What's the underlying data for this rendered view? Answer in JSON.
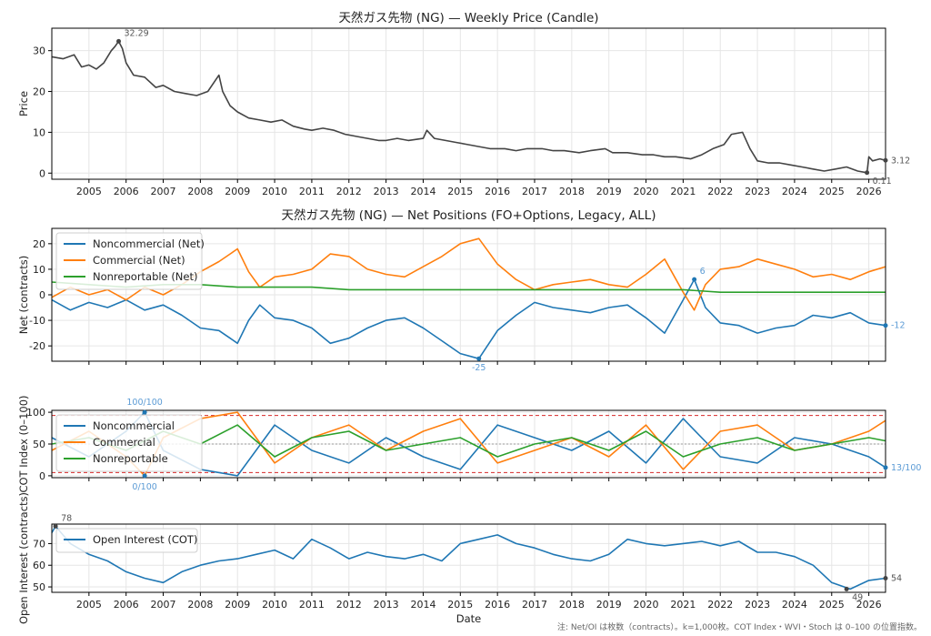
{
  "chart_data": [
    {
      "type": "line",
      "title": "天然ガス先物 (NG) — Weekly Price (Candle)",
      "ylabel": "Price",
      "xlabel": "",
      "xlim": [
        2004.0,
        2026.45
      ],
      "ylim": [
        -1.5,
        35.5
      ],
      "yticks": [
        0,
        10,
        20,
        30
      ],
      "xticks": [
        2005,
        2006,
        2007,
        2008,
        2009,
        2010,
        2011,
        2012,
        2013,
        2014,
        2015,
        2016,
        2017,
        2018,
        2019,
        2020,
        2021,
        2022,
        2023,
        2024,
        2025,
        2026
      ],
      "grid": true,
      "colors": [
        "#444444"
      ],
      "series": [
        {
          "x": [
            2004.0,
            2004.3,
            2004.6,
            2004.8,
            2005.0,
            2005.2,
            2005.4,
            2005.6,
            2005.7,
            2005.8,
            2005.9,
            2006.0,
            2006.2,
            2006.5,
            2006.8,
            2007.0,
            2007.3,
            2007.6,
            2007.9,
            2008.2,
            2008.5,
            2008.6,
            2008.8,
            2009.0,
            2009.3,
            2009.6,
            2009.9,
            2010.2,
            2010.5,
            2010.8,
            2011.0,
            2011.3,
            2011.6,
            2011.9,
            2012.2,
            2012.5,
            2012.8,
            2013.0,
            2013.3,
            2013.6,
            2014.0,
            2014.1,
            2014.3,
            2014.6,
            2014.9,
            2015.2,
            2015.5,
            2015.8,
            2016.2,
            2016.5,
            2016.8,
            2017.2,
            2017.5,
            2017.8,
            2018.2,
            2018.5,
            2018.9,
            2019.1,
            2019.5,
            2019.9,
            2020.2,
            2020.5,
            2020.8,
            2021.2,
            2021.5,
            2021.8,
            2022.1,
            2022.3,
            2022.6,
            2022.8,
            2023.0,
            2023.3,
            2023.6,
            2023.9,
            2024.2,
            2024.5,
            2024.8,
            2025.1,
            2025.4,
            2025.7,
            2025.95,
            2026.0,
            2026.1,
            2026.3,
            2026.45
          ],
          "y": [
            28.5,
            28.0,
            29.0,
            26.0,
            26.5,
            25.5,
            27.0,
            30.0,
            31.0,
            32.29,
            30.5,
            27.0,
            24.0,
            23.5,
            21.0,
            21.5,
            20.0,
            19.5,
            19.0,
            20.0,
            24.0,
            20.0,
            16.5,
            15.0,
            13.5,
            13.0,
            12.5,
            13.0,
            11.5,
            10.8,
            10.5,
            11.0,
            10.5,
            9.5,
            9.0,
            8.5,
            8.0,
            8.0,
            8.5,
            8.0,
            8.5,
            10.5,
            8.5,
            8.0,
            7.5,
            7.0,
            6.5,
            6.0,
            6.0,
            5.5,
            6.0,
            6.0,
            5.5,
            5.5,
            5.0,
            5.5,
            6.0,
            5.0,
            5.0,
            4.5,
            4.5,
            4.0,
            4.0,
            3.5,
            4.5,
            6.0,
            7.0,
            9.5,
            10.0,
            6.0,
            3.0,
            2.5,
            2.5,
            2.0,
            1.5,
            1.0,
            0.5,
            1.0,
            1.5,
            0.5,
            0.11,
            4.0,
            3.0,
            3.5,
            3.12
          ]
        }
      ],
      "annotations": [
        {
          "label": "32.29",
          "x": 2005.8,
          "y": 32.29
        },
        {
          "label": "3.12",
          "x": 2026.45,
          "y": 3.12
        },
        {
          "label": "0.11",
          "x": 2025.95,
          "y": 0.11
        }
      ]
    },
    {
      "type": "line",
      "title": "天然ガス先物 (NG) — Net Positions (FO+Options, Legacy, ALL)",
      "ylabel": "Net (contracts)",
      "xlabel": "",
      "xlim": [
        2004.0,
        2026.45
      ],
      "ylim": [
        -26,
        26
      ],
      "yticks": [
        -20,
        -10,
        0,
        10,
        20
      ],
      "grid": true,
      "legend_position": "upper-left",
      "series": [
        {
          "name": "Noncommercial (Net)",
          "color": "#1f77b4",
          "x": [
            2004.0,
            2004.5,
            2005.0,
            2005.5,
            2006.0,
            2006.5,
            2007.0,
            2007.5,
            2008.0,
            2008.5,
            2008.8,
            2009.0,
            2009.3,
            2009.6,
            2010.0,
            2010.5,
            2011.0,
            2011.5,
            2012.0,
            2012.5,
            2013.0,
            2013.5,
            2014.0,
            2014.5,
            2015.0,
            2015.5,
            2016.0,
            2016.5,
            2017.0,
            2017.5,
            2018.0,
            2018.5,
            2019.0,
            2019.5,
            2020.0,
            2020.5,
            2021.0,
            2021.3,
            2021.6,
            2022.0,
            2022.5,
            2023.0,
            2023.5,
            2024.0,
            2024.5,
            2025.0,
            2025.5,
            2026.0,
            2026.45
          ],
          "y": [
            -2,
            -6,
            -3,
            -5,
            -2,
            -6,
            -4,
            -8,
            -13,
            -14,
            -17,
            -19,
            -10,
            -4,
            -9,
            -10,
            -13,
            -19,
            -17,
            -13,
            -10,
            -9,
            -13,
            -18,
            -23,
            -25,
            -14,
            -8,
            -3,
            -5,
            -6,
            -7,
            -5,
            -4,
            -9,
            -15,
            -2,
            6,
            -5,
            -11,
            -12,
            -15,
            -13,
            -12,
            -8,
            -9,
            -7,
            -11,
            -12
          ]
        },
        {
          "name": "Commercial (Net)",
          "color": "#ff7f0e",
          "x": [
            2004.0,
            2004.5,
            2005.0,
            2005.5,
            2006.0,
            2006.5,
            2007.0,
            2007.5,
            2008.0,
            2008.5,
            2008.8,
            2009.0,
            2009.3,
            2009.6,
            2010.0,
            2010.5,
            2011.0,
            2011.5,
            2012.0,
            2012.5,
            2013.0,
            2013.5,
            2014.0,
            2014.5,
            2015.0,
            2015.5,
            2016.0,
            2016.5,
            2017.0,
            2017.5,
            2018.0,
            2018.5,
            2019.0,
            2019.5,
            2020.0,
            2020.5,
            2021.0,
            2021.3,
            2021.6,
            2022.0,
            2022.5,
            2023.0,
            2023.5,
            2024.0,
            2024.5,
            2025.0,
            2025.5,
            2026.0,
            2026.45
          ],
          "y": [
            -1,
            3,
            0,
            2,
            -2,
            3,
            0,
            4,
            9,
            13,
            16,
            18,
            9,
            3,
            7,
            8,
            10,
            16,
            15,
            10,
            8,
            7,
            11,
            15,
            20,
            22,
            12,
            6,
            2,
            4,
            5,
            6,
            4,
            3,
            8,
            14,
            1,
            -6,
            4,
            10,
            11,
            14,
            12,
            10,
            7,
            8,
            6,
            9,
            11
          ]
        },
        {
          "name": "Nonreportable (Net)",
          "color": "#2ca02c",
          "x": [
            2004.0,
            2005.0,
            2006.0,
            2007.0,
            2008.0,
            2009.0,
            2010.0,
            2011.0,
            2012.0,
            2013.0,
            2014.0,
            2015.0,
            2016.0,
            2017.0,
            2018.0,
            2019.0,
            2020.0,
            2021.0,
            2022.0,
            2023.0,
            2024.0,
            2025.0,
            2026.0,
            2026.45
          ],
          "y": [
            5,
            4,
            3,
            4,
            4,
            3,
            3,
            3,
            2,
            2,
            2,
            2,
            2,
            2,
            2,
            2,
            2,
            2,
            1,
            1,
            1,
            1,
            1,
            1
          ]
        }
      ],
      "annotations": [
        {
          "label": "6",
          "x": 2021.3,
          "y": 6
        },
        {
          "label": "-25",
          "x": 2015.5,
          "y": -25
        },
        {
          "label": "-12",
          "x": 2026.45,
          "y": -12
        }
      ]
    },
    {
      "type": "line",
      "title": "",
      "ylabel": "COT Index (0–100)",
      "xlabel": "",
      "xlim": [
        2004.0,
        2026.45
      ],
      "ylim": [
        -3,
        103
      ],
      "yticks": [
        0,
        50,
        100
      ],
      "reference_lines": [
        5,
        50,
        95
      ],
      "grid": true,
      "legend_position": "upper-left",
      "series": [
        {
          "name": "Noncommercial",
          "color": "#1f77b4",
          "x": [
            2004.0,
            2005.0,
            2006.0,
            2006.5,
            2007.0,
            2008.0,
            2009.0,
            2010.0,
            2011.0,
            2012.0,
            2013.0,
            2014.0,
            2015.0,
            2016.0,
            2017.0,
            2018.0,
            2019.0,
            2020.0,
            2021.0,
            2022.0,
            2023.0,
            2024.0,
            2025.0,
            2026.0,
            2026.45
          ],
          "y": [
            60,
            30,
            70,
            100,
            40,
            10,
            0,
            80,
            40,
            20,
            60,
            30,
            10,
            80,
            60,
            40,
            70,
            20,
            90,
            30,
            20,
            60,
            50,
            30,
            13
          ]
        },
        {
          "name": "Commercial",
          "color": "#ff7f0e",
          "x": [
            2004.0,
            2005.0,
            2006.0,
            2006.5,
            2007.0,
            2008.0,
            2009.0,
            2010.0,
            2011.0,
            2012.0,
            2013.0,
            2014.0,
            2015.0,
            2016.0,
            2017.0,
            2018.0,
            2019.0,
            2020.0,
            2021.0,
            2022.0,
            2023.0,
            2024.0,
            2025.0,
            2026.0,
            2026.45
          ],
          "y": [
            40,
            70,
            30,
            0,
            60,
            90,
            100,
            20,
            60,
            80,
            40,
            70,
            90,
            20,
            40,
            60,
            30,
            80,
            10,
            70,
            80,
            40,
            50,
            70,
            87
          ]
        },
        {
          "name": "Nonreportable",
          "color": "#2ca02c",
          "x": [
            2004.0,
            2005.0,
            2006.0,
            2007.0,
            2008.0,
            2009.0,
            2010.0,
            2011.0,
            2012.0,
            2013.0,
            2014.0,
            2015.0,
            2016.0,
            2017.0,
            2018.0,
            2019.0,
            2020.0,
            2021.0,
            2022.0,
            2023.0,
            2024.0,
            2025.0,
            2026.0,
            2026.45
          ],
          "y": [
            50,
            60,
            40,
            70,
            50,
            80,
            30,
            60,
            70,
            40,
            50,
            60,
            30,
            50,
            60,
            40,
            70,
            30,
            50,
            60,
            40,
            50,
            60,
            55
          ]
        }
      ],
      "annotations": [
        {
          "label": "100/100",
          "x": 2006.5,
          "y": 100
        },
        {
          "label": "0/100",
          "x": 2006.5,
          "y": 0
        },
        {
          "label": "13/100",
          "x": 2026.45,
          "y": 13
        }
      ]
    },
    {
      "type": "line",
      "title": "",
      "ylabel": "Open Interest (contracts)",
      "xlabel": "Date",
      "xlim": [
        2004.0,
        2026.45
      ],
      "ylim": [
        47.5,
        79
      ],
      "yticks": [
        50,
        60,
        70
      ],
      "xticks": [
        2005,
        2006,
        2007,
        2008,
        2009,
        2010,
        2011,
        2012,
        2013,
        2014,
        2015,
        2016,
        2017,
        2018,
        2019,
        2020,
        2021,
        2022,
        2023,
        2024,
        2025,
        2026
      ],
      "grid": true,
      "legend_position": "upper-left",
      "series": [
        {
          "name": "Open Interest (COT)",
          "color": "#1f77b4",
          "x": [
            2004.0,
            2004.1,
            2004.5,
            2005.0,
            2005.5,
            2006.0,
            2006.5,
            2007.0,
            2007.5,
            2008.0,
            2008.5,
            2009.0,
            2009.5,
            2010.0,
            2010.5,
            2011.0,
            2011.5,
            2012.0,
            2012.5,
            2013.0,
            2013.5,
            2014.0,
            2014.5,
            2015.0,
            2015.5,
            2016.0,
            2016.5,
            2017.0,
            2017.5,
            2018.0,
            2018.5,
            2019.0,
            2019.5,
            2020.0,
            2020.5,
            2021.0,
            2021.5,
            2022.0,
            2022.5,
            2023.0,
            2023.5,
            2024.0,
            2024.5,
            2025.0,
            2025.5,
            2026.0,
            2026.45
          ],
          "y": [
            75,
            78,
            70,
            65,
            62,
            57,
            54,
            52,
            57,
            60,
            62,
            63,
            65,
            67,
            63,
            72,
            68,
            63,
            66,
            64,
            63,
            65,
            62,
            70,
            72,
            74,
            70,
            68,
            65,
            63,
            62,
            65,
            72,
            70,
            69,
            70,
            71,
            69,
            71,
            66,
            66,
            64,
            60,
            52,
            49,
            53,
            54
          ]
        }
      ],
      "annotations": [
        {
          "label": "78",
          "x": 2004.1,
          "y": 78
        },
        {
          "label": "49",
          "x": 2025.4,
          "y": 49
        },
        {
          "label": "54",
          "x": 2026.45,
          "y": 54
        }
      ]
    }
  ],
  "footnote": "注: Net/OI は枚数（contracts）。k=1,000枚。COT Index・WVI・Stoch は 0–100 の位置指数。"
}
